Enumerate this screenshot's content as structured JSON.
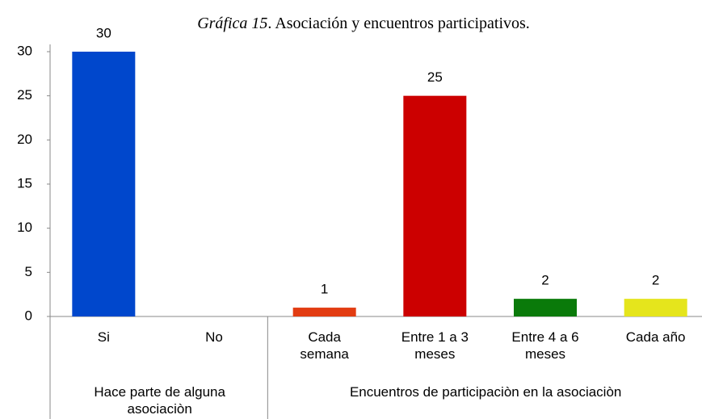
{
  "chart_data": {
    "type": "bar",
    "title": [
      "Gráfica 15",
      ". Asociación y encuentros participativos."
    ],
    "categories": [
      "Si",
      "No",
      "Cada\nsemana",
      "Entre 1 a 3\nmeses",
      "Entre 4 a 6\nmeses",
      "Cada año"
    ],
    "values": [
      30,
      0,
      1,
      25,
      2,
      2
    ],
    "value_labels": [
      "30",
      null,
      "1",
      "25",
      "2",
      "2"
    ],
    "colors": [
      "#0047cc",
      "#0047cc",
      "#e23c12",
      "#cc0000",
      "#0a7a0a",
      "#e5e51c"
    ],
    "groups": [
      {
        "name": "Hace parte de alguna\nasociaciòn",
        "count": 2
      },
      {
        "name": "Encuentros de participaciòn en la asociaciòn",
        "count": 4
      }
    ],
    "ylim": [
      0,
      30
    ],
    "yticks": [
      0,
      5,
      10,
      15,
      20,
      25,
      30
    ],
    "grid": false
  }
}
